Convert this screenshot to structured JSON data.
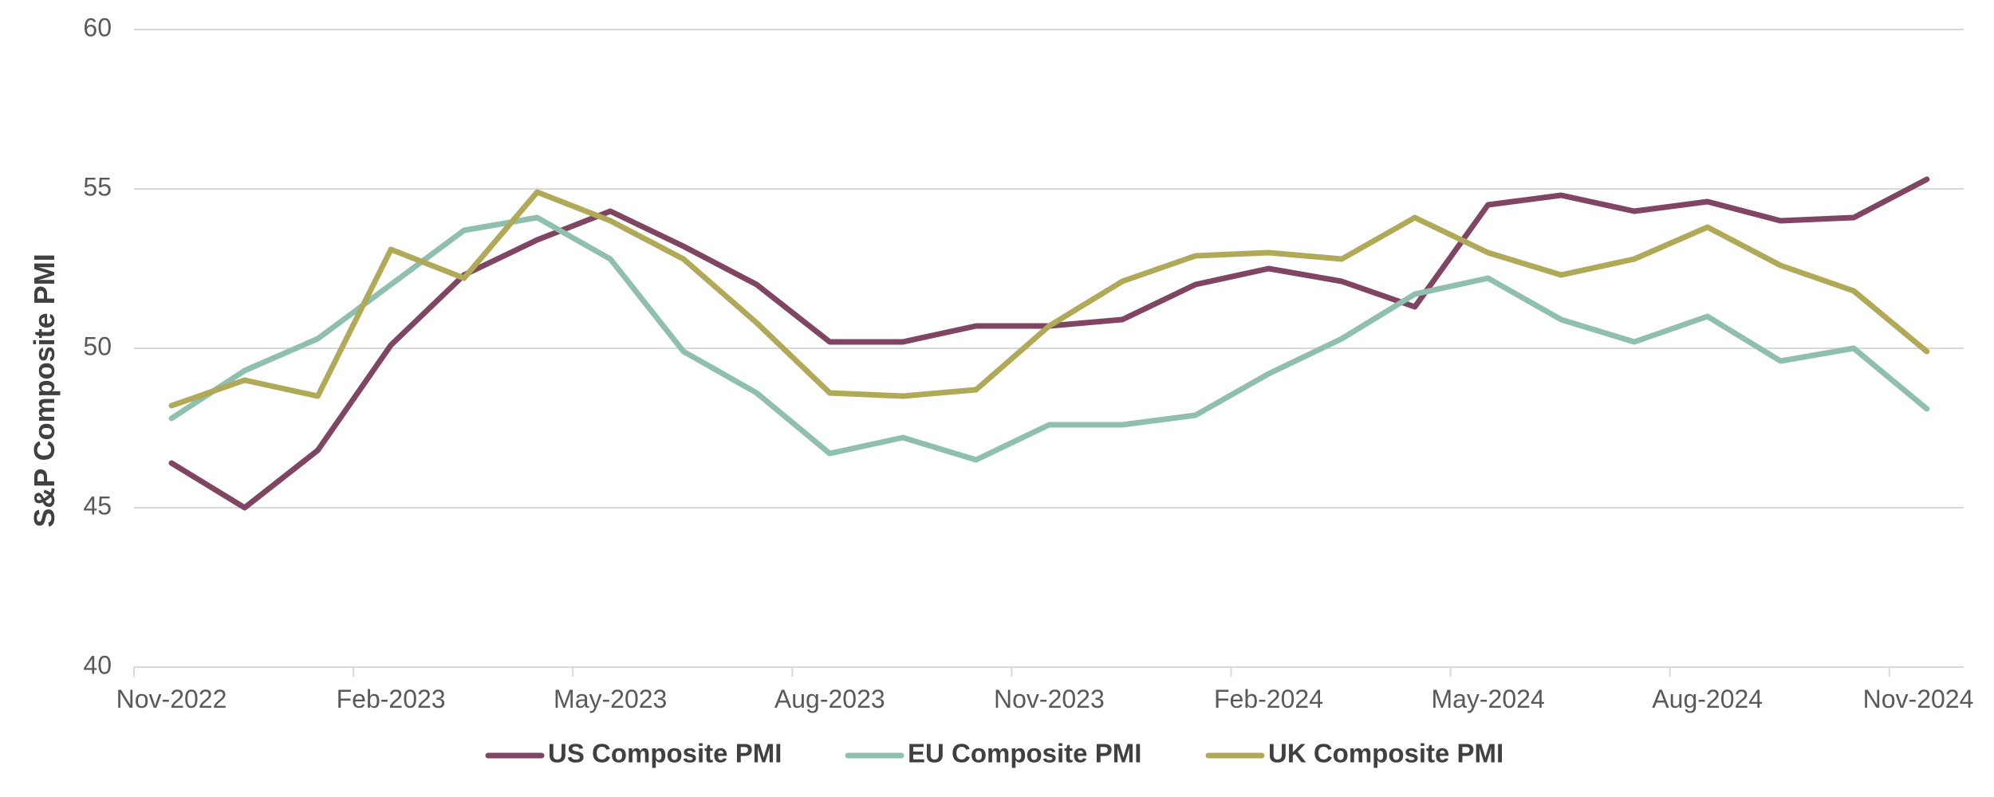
{
  "chart_data": {
    "type": "line",
    "title": "",
    "xlabel": "",
    "ylabel": "S&P Composite PMI",
    "ylim": [
      40,
      60
    ],
    "yticks": [
      40,
      45,
      50,
      55,
      60
    ],
    "grid": true,
    "legend_position": "bottom",
    "x": [
      "Nov-2022",
      "Dec-2022",
      "Jan-2023",
      "Feb-2023",
      "Mar-2023",
      "Apr-2023",
      "May-2023",
      "Jun-2023",
      "Jul-2023",
      "Aug-2023",
      "Sep-2023",
      "Oct-2023",
      "Nov-2023",
      "Dec-2023",
      "Jan-2024",
      "Feb-2024",
      "Mar-2024",
      "Apr-2024",
      "May-2024",
      "Jun-2024",
      "Jul-2024",
      "Aug-2024",
      "Sep-2024",
      "Oct-2024",
      "Nov-2024"
    ],
    "xtick_labels": [
      "Nov-2022",
      "Feb-2023",
      "May-2023",
      "Aug-2023",
      "Nov-2023",
      "Feb-2024",
      "May-2024",
      "Aug-2024",
      "Nov-2024"
    ],
    "series": [
      {
        "name": "US Composite PMI",
        "color": "#7f4563",
        "values": [
          46.4,
          45.0,
          46.8,
          50.1,
          52.3,
          53.4,
          54.3,
          53.2,
          52.0,
          50.2,
          50.2,
          50.7,
          50.7,
          50.9,
          52.0,
          52.5,
          52.1,
          51.3,
          54.5,
          54.8,
          54.3,
          54.6,
          54.0,
          54.1,
          55.3
        ]
      },
      {
        "name": "EU Composite PMI",
        "color": "#8fbfad",
        "values": [
          47.8,
          49.3,
          50.3,
          52.0,
          53.7,
          54.1,
          52.8,
          49.9,
          48.6,
          46.7,
          47.2,
          46.5,
          47.6,
          47.6,
          47.9,
          49.2,
          50.3,
          51.7,
          52.2,
          50.9,
          50.2,
          51.0,
          49.6,
          50.0,
          48.1
        ]
      },
      {
        "name": "UK Composite PMI",
        "color": "#b0aa58",
        "values": [
          48.2,
          49.0,
          48.5,
          53.1,
          52.2,
          54.9,
          54.0,
          52.8,
          50.8,
          48.6,
          48.5,
          48.7,
          50.7,
          52.1,
          52.9,
          53.0,
          52.8,
          54.1,
          53.0,
          52.3,
          52.8,
          53.8,
          52.6,
          51.8,
          49.9
        ]
      }
    ]
  }
}
